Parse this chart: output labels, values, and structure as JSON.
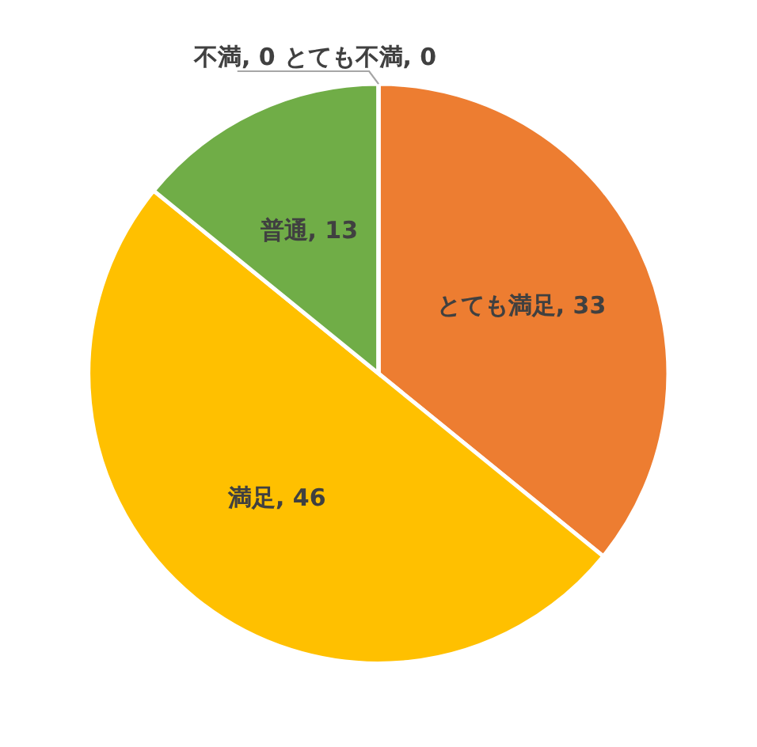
{
  "chart_data": {
    "type": "pie",
    "categories": [
      "とても満足",
      "満足",
      "普通",
      "不満",
      "とても不満"
    ],
    "values": [
      33,
      46,
      13,
      0,
      0
    ],
    "value_labels": [
      ", 33",
      ", 46",
      ", 13",
      ", 0",
      ", 0"
    ],
    "colors": [
      "#ed7d31",
      "#ffc000",
      "#70ad47",
      "#a5a5a5",
      "#4472c4"
    ]
  }
}
